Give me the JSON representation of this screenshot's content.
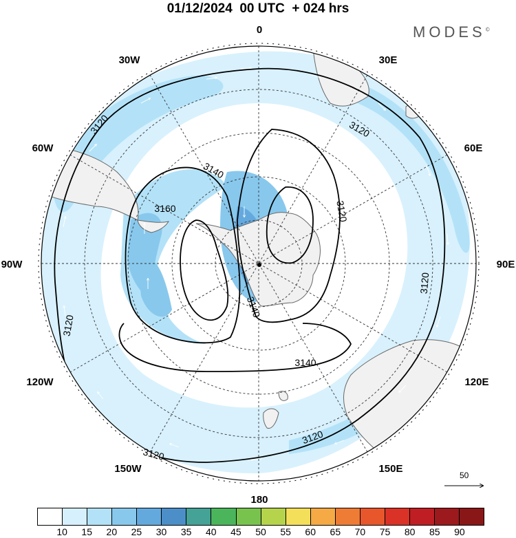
{
  "header": {
    "title": "01/12/2024  00 UTC  + 024 hrs",
    "brand": "MODES"
  },
  "map": {
    "projection": "south-polar-stereographic",
    "longitude_labels": [
      "0",
      "30E",
      "60E",
      "90E",
      "120E",
      "150E",
      "180",
      "150W",
      "120W",
      "90W",
      "60W",
      "30W"
    ],
    "contour_labels": [
      "3120",
      "3120",
      "3120",
      "3120",
      "3120",
      "3120",
      "3140",
      "3140",
      "3140",
      "3160"
    ],
    "colors": {
      "land": "#f1f1f1",
      "coast": "#666666",
      "contour": "#000000",
      "grid": "#333333"
    }
  },
  "wind_scale": {
    "value": "50"
  },
  "colorbar": {
    "colors": [
      "#ffffff",
      "#d6f0fd",
      "#b3e2f8",
      "#88c8ed",
      "#64a9de",
      "#4c8fc8",
      "#44a296",
      "#4ab55b",
      "#78c34e",
      "#b5d44b",
      "#f4df5a",
      "#f5aa45",
      "#ef7c35",
      "#e8562c",
      "#da3226",
      "#bf1f24",
      "#9c1a1d",
      "#8a1718"
    ],
    "labels": [
      "10",
      "15",
      "20",
      "25",
      "30",
      "35",
      "40",
      "45",
      "50",
      "55",
      "60",
      "65",
      "70",
      "75",
      "80",
      "85",
      "90"
    ]
  }
}
